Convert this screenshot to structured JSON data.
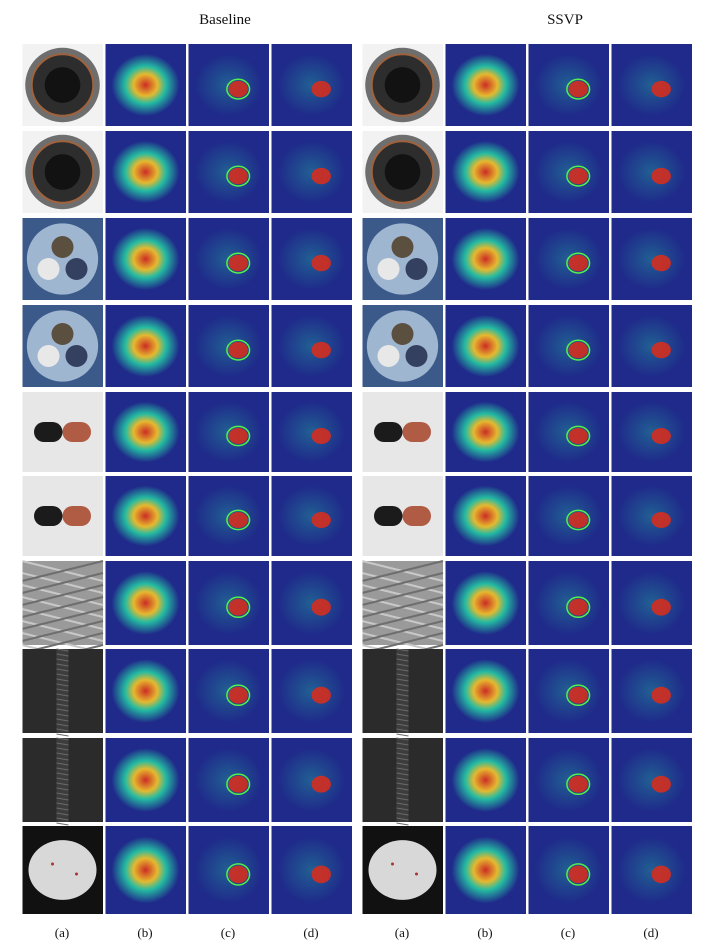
{
  "groups": [
    {
      "title": "Baseline"
    },
    {
      "title": "SSVP"
    }
  ],
  "column_labels": [
    "(a)",
    "(b)",
    "(c)",
    "(d)"
  ],
  "rows": [
    {
      "object": "bottle",
      "bg": "#2a2a2a"
    },
    {
      "object": "bottle",
      "bg": "#2a2a2a"
    },
    {
      "object": "screw-bag",
      "bg": "#3b5a8a"
    },
    {
      "object": "screw-bag",
      "bg": "#3b5a8a"
    },
    {
      "object": "capsule",
      "bg": "#e7e7e7"
    },
    {
      "object": "capsule",
      "bg": "#e7e7e7"
    },
    {
      "object": "mesh",
      "bg": "#9a9a9a"
    },
    {
      "object": "zipper",
      "bg": "#2b2b2b"
    },
    {
      "object": "zipper",
      "bg": "#2b2b2b"
    },
    {
      "object": "pill",
      "bg": "#111111"
    }
  ],
  "colors": {
    "heat_low": "#1f2a8a",
    "heat_mid": "#25c3a3",
    "heat_high": "#d42d1f",
    "outline": "#52f04b"
  }
}
